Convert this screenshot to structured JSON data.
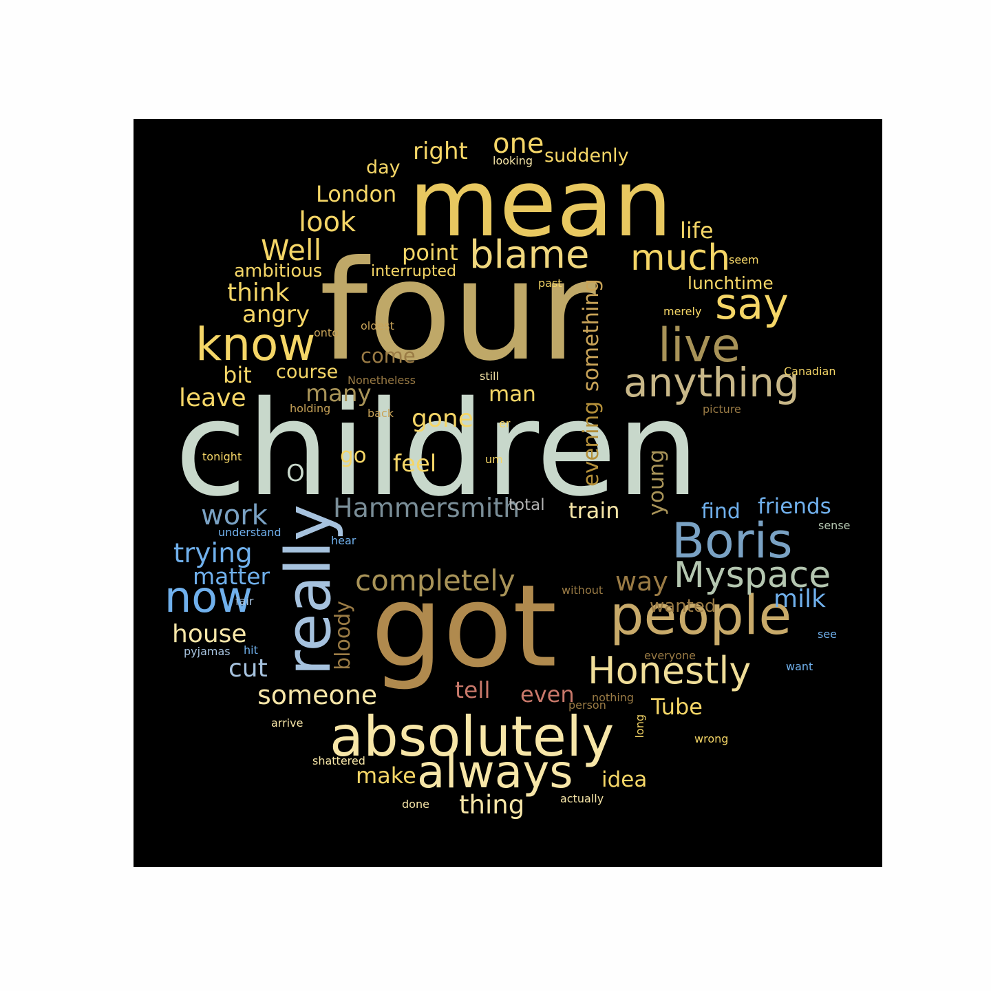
{
  "words": [
    {
      "text": "children",
      "color": "#c8d8cb"
    },
    {
      "text": "four",
      "color": "#bfa868"
    },
    {
      "text": "mean",
      "color": "#e8c860"
    },
    {
      "text": "got",
      "color": "#b08a4e"
    },
    {
      "text": "absolutely",
      "color": "#f7e6a8"
    },
    {
      "text": "people",
      "color": "#c8aa6a"
    },
    {
      "text": "really",
      "color": "#a6c2de"
    },
    {
      "text": "Boris",
      "color": "#7aa2c4"
    },
    {
      "text": "anything",
      "color": "#c8b788"
    },
    {
      "text": "live",
      "color": "#a89358"
    },
    {
      "text": "always",
      "color": "#f7e6a8"
    },
    {
      "text": "blame",
      "color": "#f0d77e"
    },
    {
      "text": "know",
      "color": "#f5d667"
    },
    {
      "text": "say",
      "color": "#f5d667"
    },
    {
      "text": "much",
      "color": "#f5d667"
    },
    {
      "text": "Myspace",
      "color": "#b4c6b0"
    },
    {
      "text": "Honestly",
      "color": "#f0de99"
    },
    {
      "text": "now",
      "color": "#70b0ec"
    },
    {
      "text": "completely",
      "color": "#a89358"
    },
    {
      "text": "Hammersmith",
      "color": "#7a8e98"
    },
    {
      "text": "look",
      "color": "#f5d667"
    },
    {
      "text": "Well",
      "color": "#f5d667"
    },
    {
      "text": "one",
      "color": "#f5d667"
    },
    {
      "text": "London",
      "color": "#f5d667"
    },
    {
      "text": "right",
      "color": "#f5d667"
    },
    {
      "text": "think",
      "color": "#f5d667"
    },
    {
      "text": "angry",
      "color": "#f5d667"
    },
    {
      "text": "point",
      "color": "#f5d667"
    },
    {
      "text": "suddenly",
      "color": "#f5d667"
    },
    {
      "text": "day",
      "color": "#f5d667"
    },
    {
      "text": "life",
      "color": "#f5d667"
    },
    {
      "text": "ambitious",
      "color": "#f5d667"
    },
    {
      "text": "interrupted",
      "color": "#f5d667"
    },
    {
      "text": "lunchtime",
      "color": "#f5d667"
    },
    {
      "text": "something",
      "color": "#c8a358"
    },
    {
      "text": "evening",
      "color": "#b38f3a"
    },
    {
      "text": "young",
      "color": "#a89358"
    },
    {
      "text": "come",
      "color": "#9a7b45"
    },
    {
      "text": "course",
      "color": "#f5d667"
    },
    {
      "text": "bit",
      "color": "#f5d667"
    },
    {
      "text": "leave",
      "color": "#f5d667"
    },
    {
      "text": "many",
      "color": "#a89358"
    },
    {
      "text": "man",
      "color": "#f5d667"
    },
    {
      "text": "gone",
      "color": "#f5d667"
    },
    {
      "text": "go",
      "color": "#f5d667"
    },
    {
      "text": "feel",
      "color": "#f5d667"
    },
    {
      "text": "Oh",
      "color": "#c8d8cb"
    },
    {
      "text": "work",
      "color": "#7aa2c4"
    },
    {
      "text": "train",
      "color": "#f7e6a8"
    },
    {
      "text": "total",
      "color": "#b4b4b4"
    },
    {
      "text": "find",
      "color": "#70b0ec"
    },
    {
      "text": "friends",
      "color": "#70b0ec"
    },
    {
      "text": "trying",
      "color": "#70b0ec"
    },
    {
      "text": "matter",
      "color": "#70b0ec"
    },
    {
      "text": "house",
      "color": "#f7e6a8"
    },
    {
      "text": "cut",
      "color": "#a6c2de"
    },
    {
      "text": "way",
      "color": "#9a7b45"
    },
    {
      "text": "milk",
      "color": "#70b0ec"
    },
    {
      "text": "wanted",
      "color": "#9a7b45"
    },
    {
      "text": "bloody",
      "color": "#9a7b45"
    },
    {
      "text": "tell",
      "color": "#c8786a"
    },
    {
      "text": "even",
      "color": "#c8786a"
    },
    {
      "text": "someone",
      "color": "#f7e6a8"
    },
    {
      "text": "Tube",
      "color": "#f5d667"
    },
    {
      "text": "make",
      "color": "#f5d667"
    },
    {
      "text": "idea",
      "color": "#f5d667"
    },
    {
      "text": "thing",
      "color": "#f7e6a8"
    },
    {
      "text": "looking",
      "color": "#f7e6a8"
    },
    {
      "text": "seem",
      "color": "#f5d667"
    },
    {
      "text": "past",
      "color": "#f5d667"
    },
    {
      "text": "merely",
      "color": "#f5d667"
    },
    {
      "text": "oldest",
      "color": "#c8a358"
    },
    {
      "text": "onto",
      "color": "#c8a358"
    },
    {
      "text": "Nonetheless",
      "color": "#9a7b45"
    },
    {
      "text": "still",
      "color": "#f7e6a8"
    },
    {
      "text": "Canadian",
      "color": "#f5d667"
    },
    {
      "text": "holding",
      "color": "#c8a358"
    },
    {
      "text": "back",
      "color": "#c8a358"
    },
    {
      "text": "picture",
      "color": "#9a7b45"
    },
    {
      "text": "er",
      "color": "#f5d667"
    },
    {
      "text": "tonight",
      "color": "#f5d667"
    },
    {
      "text": "um",
      "color": "#f5d667"
    },
    {
      "text": "understand",
      "color": "#70b0ec"
    },
    {
      "text": "hear",
      "color": "#70b0ec"
    },
    {
      "text": "sense",
      "color": "#b4c6b0"
    },
    {
      "text": "without",
      "color": "#9a7b45"
    },
    {
      "text": "fair",
      "color": "#a6c2de"
    },
    {
      "text": "pyjamas",
      "color": "#a6c2de"
    },
    {
      "text": "hit",
      "color": "#70b0ec"
    },
    {
      "text": "see",
      "color": "#70b0ec"
    },
    {
      "text": "everyone",
      "color": "#9a7b45"
    },
    {
      "text": "want",
      "color": "#70b0ec"
    },
    {
      "text": "nothing",
      "color": "#9a7b45"
    },
    {
      "text": "person",
      "color": "#9a7b45"
    },
    {
      "text": "long",
      "color": "#f5d667"
    },
    {
      "text": "wrong",
      "color": "#f5d667"
    },
    {
      "text": "arrive",
      "color": "#f7e6a8"
    },
    {
      "text": "shattered",
      "color": "#f7e6a8"
    },
    {
      "text": "done",
      "color": "#f7e6a8"
    },
    {
      "text": "actually",
      "color": "#f7e6a8"
    }
  ]
}
